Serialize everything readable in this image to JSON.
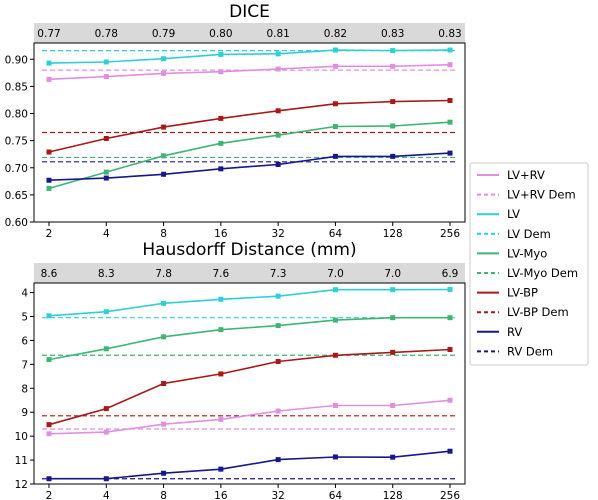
{
  "chart_data": [
    {
      "type": "line",
      "title": "DICE",
      "x": [
        "2",
        "4",
        "8",
        "16",
        "32",
        "64",
        "128",
        "256"
      ],
      "top_labels": [
        "0.77",
        "0.78",
        "0.79",
        "0.80",
        "0.81",
        "0.82",
        "0.83",
        "0.83"
      ],
      "ylim": [
        0.6,
        0.93
      ],
      "yticks": [
        0.6,
        0.65,
        0.7,
        0.75,
        0.8,
        0.85,
        0.9
      ],
      "ytick_labels": [
        "0.60",
        "0.65",
        "0.70",
        "0.75",
        "0.80",
        "0.85",
        "0.90"
      ],
      "grid": false,
      "series": [
        {
          "name": "LV+RV",
          "color": "#e08fe0",
          "values": [
            0.863,
            0.868,
            0.874,
            0.877,
            0.882,
            0.887,
            0.887,
            0.89
          ]
        },
        {
          "name": "LV+RV Dem",
          "color": "#e08fe0",
          "dashed": true,
          "value": 0.88
        },
        {
          "name": "LV",
          "color": "#2fcfd6",
          "values": [
            0.893,
            0.895,
            0.901,
            0.909,
            0.91,
            0.917,
            0.916,
            0.917
          ]
        },
        {
          "name": "LV Dem",
          "color": "#2fcfd6",
          "dashed": true,
          "value": 0.916
        },
        {
          "name": "LV-Myo",
          "color": "#3fb573",
          "values": [
            0.662,
            0.692,
            0.722,
            0.745,
            0.76,
            0.776,
            0.777,
            0.784
          ]
        },
        {
          "name": "LV-Myo Dem",
          "color": "#3fb573",
          "dashed": true,
          "value": 0.719
        },
        {
          "name": "LV-BP",
          "color": "#a81818",
          "values": [
            0.729,
            0.754,
            0.775,
            0.791,
            0.805,
            0.818,
            0.822,
            0.824
          ]
        },
        {
          "name": "LV-BP Dem",
          "color": "#a81818",
          "dashed": true,
          "value": 0.765
        },
        {
          "name": "RV",
          "color": "#17178a",
          "values": [
            0.677,
            0.681,
            0.688,
            0.698,
            0.706,
            0.721,
            0.721,
            0.727
          ]
        },
        {
          "name": "RV Dem",
          "color": "#17178a",
          "dashed": true,
          "value": 0.711
        }
      ]
    },
    {
      "type": "line",
      "title": "Hausdorff Distance (mm)",
      "x": [
        "2",
        "4",
        "8",
        "16",
        "32",
        "64",
        "128",
        "256"
      ],
      "top_labels": [
        "8.6",
        "8.3",
        "7.8",
        "7.6",
        "7.3",
        "7.0",
        "7.0",
        "6.9"
      ],
      "ylim": [
        12,
        3.6
      ],
      "y_inverted": true,
      "yticks": [
        4,
        5,
        6,
        7,
        8,
        9,
        10,
        11,
        12
      ],
      "ytick_labels": [
        "4",
        "5",
        "6",
        "7",
        "8",
        "9",
        "10",
        "11",
        "12"
      ],
      "grid": false,
      "series": [
        {
          "name": "LV+RV",
          "color": "#e08fe0",
          "values": [
            9.9,
            9.83,
            9.5,
            9.3,
            8.95,
            8.72,
            8.72,
            8.5
          ]
        },
        {
          "name": "LV+RV Dem",
          "color": "#e08fe0",
          "dashed": true,
          "value": 9.7
        },
        {
          "name": "LV",
          "color": "#2fcfd6",
          "values": [
            4.97,
            4.8,
            4.45,
            4.28,
            4.15,
            3.88,
            3.88,
            3.87
          ]
        },
        {
          "name": "LV Dem",
          "color": "#2fcfd6",
          "dashed": true,
          "value": 5.05
        },
        {
          "name": "LV-Myo",
          "color": "#3fb573",
          "values": [
            6.8,
            6.35,
            5.85,
            5.55,
            5.38,
            5.15,
            5.05,
            5.05
          ]
        },
        {
          "name": "LV-Myo Dem",
          "color": "#3fb573",
          "dashed": true,
          "value": 6.62
        },
        {
          "name": "LV-BP",
          "color": "#a81818",
          "values": [
            9.52,
            8.85,
            7.8,
            7.4,
            6.88,
            6.62,
            6.5,
            6.38
          ]
        },
        {
          "name": "LV-BP Dem",
          "color": "#a81818",
          "dashed": true,
          "value": 9.15
        },
        {
          "name": "RV",
          "color": "#17178a",
          "values": [
            11.78,
            11.78,
            11.55,
            11.38,
            10.98,
            10.87,
            10.88,
            10.63
          ]
        },
        {
          "name": "RV Dem",
          "color": "#17178a",
          "dashed": true,
          "value": 11.78
        }
      ]
    }
  ],
  "legend": {
    "placement": "right",
    "entries": [
      {
        "label": "LV+RV",
        "color": "#e08fe0",
        "dashed": false
      },
      {
        "label": "LV+RV Dem",
        "color": "#e08fe0",
        "dashed": true
      },
      {
        "label": "LV",
        "color": "#2fcfd6",
        "dashed": false
      },
      {
        "label": "LV Dem",
        "color": "#2fcfd6",
        "dashed": true
      },
      {
        "label": "LV-Myo",
        "color": "#3fb573",
        "dashed": false
      },
      {
        "label": "LV-Myo Dem",
        "color": "#3fb573",
        "dashed": true
      },
      {
        "label": "LV-BP",
        "color": "#a81818",
        "dashed": false
      },
      {
        "label": "LV-BP Dem",
        "color": "#a81818",
        "dashed": true
      },
      {
        "label": "RV",
        "color": "#17178a",
        "dashed": false
      },
      {
        "label": "RV Dem",
        "color": "#17178a",
        "dashed": true
      }
    ]
  },
  "colors": {
    "band": "#d9d9d9"
  }
}
